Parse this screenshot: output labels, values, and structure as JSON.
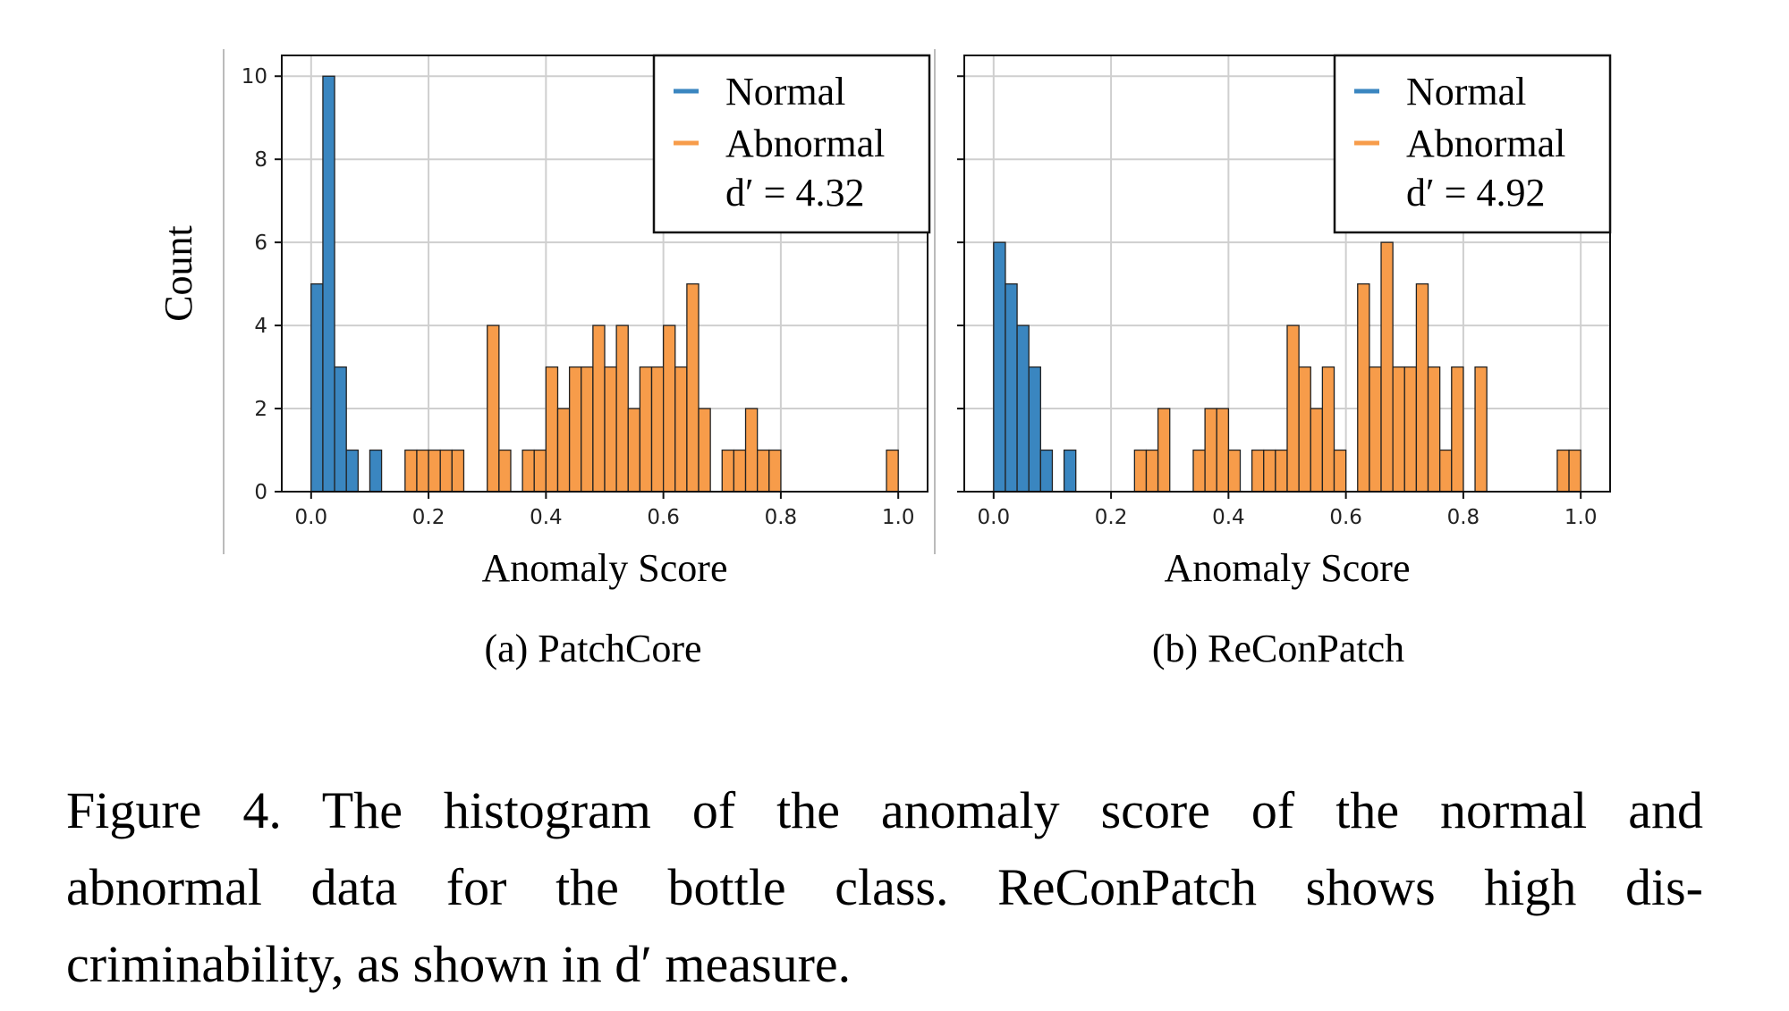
{
  "figure": {
    "caption_lines": [
      "Figure 4.  The histogram of the anomaly score of the normal and",
      "abnormal data for the bottle class.  ReConPatch shows high dis-",
      "criminability, as shown in d′ measure."
    ]
  },
  "colors": {
    "normal": "#3a86c0",
    "abnormal": "#f79c4a",
    "bar_edge": "#222222",
    "grid": "#cfcfcf"
  },
  "chart_data": [
    {
      "type": "bar",
      "subcaption": "(a) PatchCore",
      "xlabel": "Anomaly Score",
      "ylabel": "Count",
      "xlim": [
        -0.05,
        1.05
      ],
      "ylim": [
        0,
        10.5
      ],
      "xticks": [
        "0.0",
        "0.2",
        "0.4",
        "0.6",
        "0.8",
        "1.0"
      ],
      "yticks": [
        "0",
        "2",
        "4",
        "6",
        "8",
        "10"
      ],
      "grid": true,
      "legend_position": "top-right",
      "legend": [
        "Normal",
        "Abnormal"
      ],
      "annotation": "d′ = 4.32",
      "bin_width": 0.02,
      "series": [
        {
          "name": "Normal",
          "bins": [
            [
              0.0,
              5
            ],
            [
              0.02,
              10
            ],
            [
              0.04,
              3
            ],
            [
              0.06,
              1
            ],
            [
              0.1,
              1
            ]
          ]
        },
        {
          "name": "Abnormal",
          "bins": [
            [
              0.16,
              1
            ],
            [
              0.18,
              1
            ],
            [
              0.2,
              1
            ],
            [
              0.22,
              1
            ],
            [
              0.24,
              1
            ],
            [
              0.3,
              4
            ],
            [
              0.32,
              1
            ],
            [
              0.36,
              1
            ],
            [
              0.38,
              1
            ],
            [
              0.4,
              3
            ],
            [
              0.42,
              2
            ],
            [
              0.44,
              3
            ],
            [
              0.46,
              3
            ],
            [
              0.48,
              4
            ],
            [
              0.5,
              3
            ],
            [
              0.52,
              4
            ],
            [
              0.54,
              2
            ],
            [
              0.56,
              3
            ],
            [
              0.58,
              3
            ],
            [
              0.6,
              4
            ],
            [
              0.62,
              3
            ],
            [
              0.64,
              5
            ],
            [
              0.66,
              2
            ],
            [
              0.7,
              1
            ],
            [
              0.72,
              1
            ],
            [
              0.74,
              2
            ],
            [
              0.76,
              1
            ],
            [
              0.78,
              1
            ],
            [
              0.98,
              1
            ]
          ]
        }
      ]
    },
    {
      "type": "bar",
      "subcaption": "(b) ReConPatch",
      "xlabel": "Anomaly Score",
      "ylabel": "",
      "xlim": [
        -0.05,
        1.05
      ],
      "ylim": [
        0,
        10.5
      ],
      "xticks": [
        "0.0",
        "0.2",
        "0.4",
        "0.6",
        "0.8",
        "1.0"
      ],
      "yticks": [],
      "grid": true,
      "legend_position": "top-right",
      "legend": [
        "Normal",
        "Abnormal"
      ],
      "annotation": "d′ = 4.92",
      "bin_width": 0.02,
      "series": [
        {
          "name": "Normal",
          "bins": [
            [
              0.0,
              6
            ],
            [
              0.02,
              5
            ],
            [
              0.04,
              4
            ],
            [
              0.06,
              3
            ],
            [
              0.08,
              1
            ],
            [
              0.12,
              1
            ]
          ]
        },
        {
          "name": "Abnormal",
          "bins": [
            [
              0.24,
              1
            ],
            [
              0.26,
              1
            ],
            [
              0.28,
              2
            ],
            [
              0.34,
              1
            ],
            [
              0.36,
              2
            ],
            [
              0.38,
              2
            ],
            [
              0.4,
              1
            ],
            [
              0.44,
              1
            ],
            [
              0.46,
              1
            ],
            [
              0.48,
              1
            ],
            [
              0.5,
              4
            ],
            [
              0.52,
              3
            ],
            [
              0.54,
              2
            ],
            [
              0.56,
              3
            ],
            [
              0.58,
              1
            ],
            [
              0.62,
              5
            ],
            [
              0.64,
              3
            ],
            [
              0.66,
              6
            ],
            [
              0.68,
              3
            ],
            [
              0.7,
              3
            ],
            [
              0.72,
              5
            ],
            [
              0.74,
              3
            ],
            [
              0.76,
              1
            ],
            [
              0.78,
              3
            ],
            [
              0.82,
              3
            ],
            [
              0.96,
              1
            ],
            [
              0.98,
              1
            ]
          ]
        }
      ]
    }
  ]
}
